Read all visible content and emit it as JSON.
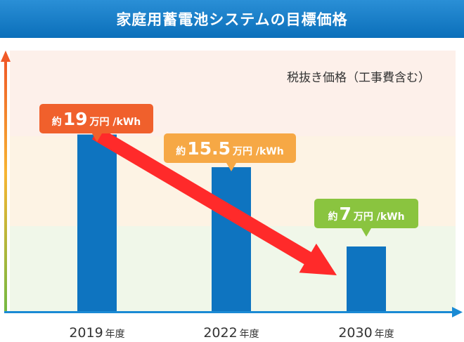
{
  "title": "家庭用蓄電池システムの目標価格",
  "colors": {
    "title_bg": "#0b6fba",
    "bar": "#0e74c0",
    "arrow": "#ff2a2a",
    "axis": "#1a8ad4",
    "band_top": "#fdf0ea",
    "band_mid": "#fdf3e4",
    "band_bottom": "#f0f7e9"
  },
  "chart_data": {
    "type": "bar",
    "title": "家庭用蓄電池システムの目標価格",
    "subtitle": "税抜き価格（工事費含む）",
    "categories": [
      "2019",
      "2022",
      "2030"
    ],
    "category_suffix": "年度",
    "values": [
      19,
      15.5,
      7
    ],
    "unit": "万円 /kWh",
    "prefix": "約",
    "callout_colors": [
      "#f0602c",
      "#f6a845",
      "#8ac43f"
    ],
    "trend_arrow": "decreasing",
    "ylim": [
      0,
      28
    ],
    "grid": false
  }
}
